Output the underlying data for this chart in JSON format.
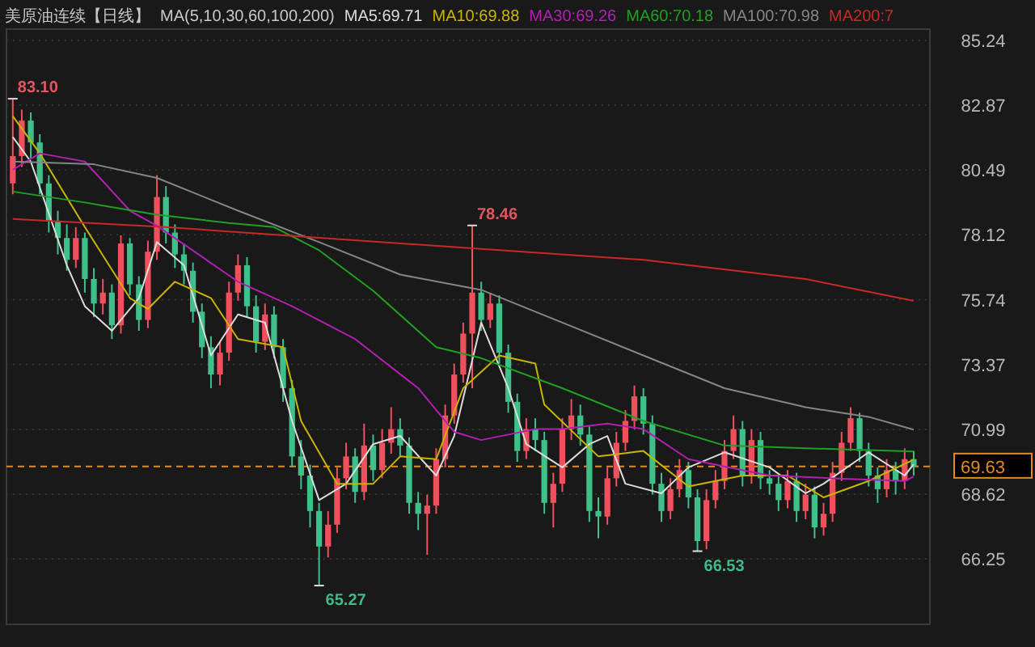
{
  "chart_data": {
    "type": "candlestick",
    "title": "美原油连续【日线】",
    "subtitle": "MA(5,10,30,60,100,200)",
    "categories": [
      null,
      null,
      null,
      null,
      null,
      null,
      null,
      null,
      null,
      null,
      null,
      null,
      null,
      null,
      null,
      null,
      null,
      null,
      null,
      null,
      null,
      null,
      null,
      null,
      null,
      null,
      null,
      null,
      null,
      null,
      null,
      null,
      null,
      null,
      null,
      null,
      null,
      null,
      null,
      null,
      null,
      null,
      null,
      null,
      null,
      null,
      null,
      null,
      null,
      null,
      null,
      null,
      null,
      null,
      null,
      null,
      null,
      null,
      null,
      null,
      null,
      null,
      null,
      null,
      null,
      null,
      null,
      null,
      null,
      null,
      null,
      null,
      null,
      null,
      null,
      null,
      null,
      null,
      null,
      null,
      null,
      null,
      null,
      null,
      null,
      null,
      null,
      null,
      null,
      null,
      null,
      null,
      null,
      null,
      null,
      null,
      null,
      null,
      null,
      null,
      null
    ],
    "ylim": [
      63.85,
      85.65
    ],
    "yticks": [
      66.25,
      68.62,
      70.99,
      73.37,
      75.74,
      78.12,
      80.49,
      82.87,
      85.24
    ],
    "grid": "y",
    "tick_labels": "y",
    "legend": "top",
    "series": [
      {
        "ohlc": [
          [
            80.0,
            83.1,
            79.6,
            81.0
          ],
          [
            81.0,
            82.7,
            80.6,
            82.3
          ],
          [
            82.3,
            82.6,
            80.9,
            81.5
          ],
          [
            81.5,
            81.8,
            79.6,
            80.0
          ],
          [
            80.0,
            80.3,
            78.2,
            78.6
          ],
          [
            78.6,
            79.0,
            77.4,
            78.0
          ],
          [
            78.0,
            78.5,
            76.8,
            77.2
          ],
          [
            77.2,
            78.4,
            76.9,
            78.0
          ],
          [
            78.0,
            78.2,
            76.0,
            76.5
          ],
          [
            76.5,
            76.9,
            75.1,
            75.6
          ],
          [
            75.6,
            76.5,
            75.2,
            76.0
          ],
          [
            76.0,
            76.3,
            74.3,
            74.8
          ],
          [
            74.8,
            78.1,
            74.5,
            77.8
          ],
          [
            77.8,
            78.0,
            75.9,
            76.3
          ],
          [
            76.3,
            76.6,
            74.6,
            75.0
          ],
          [
            75.0,
            77.9,
            74.7,
            77.5
          ],
          [
            77.5,
            80.3,
            77.2,
            79.5
          ],
          [
            79.5,
            79.9,
            77.8,
            78.2
          ],
          [
            78.2,
            78.5,
            76.9,
            77.4
          ],
          [
            77.4,
            77.8,
            76.3,
            76.8
          ],
          [
            76.8,
            77.1,
            74.9,
            75.3
          ],
          [
            75.3,
            75.6,
            73.6,
            74.0
          ],
          [
            74.0,
            74.4,
            72.5,
            73.0
          ],
          [
            73.0,
            74.2,
            72.6,
            73.8
          ],
          [
            73.8,
            76.4,
            73.5,
            76.0
          ],
          [
            76.0,
            77.4,
            75.7,
            77.0
          ],
          [
            77.0,
            77.3,
            75.1,
            75.5
          ],
          [
            75.5,
            75.9,
            73.8,
            74.2
          ],
          [
            74.2,
            75.6,
            73.9,
            75.2
          ],
          [
            75.2,
            75.5,
            73.6,
            74.0
          ],
          [
            74.0,
            74.3,
            72.0,
            72.5
          ],
          [
            72.5,
            72.8,
            69.6,
            70.0
          ],
          [
            70.0,
            70.6,
            68.8,
            69.3
          ],
          [
            69.3,
            69.7,
            67.4,
            68.0
          ],
          [
            68.0,
            68.3,
            65.27,
            66.7
          ],
          [
            66.7,
            68.0,
            66.3,
            67.5
          ],
          [
            67.5,
            69.6,
            67.2,
            69.2
          ],
          [
            69.2,
            70.5,
            68.8,
            70.0
          ],
          [
            70.0,
            70.3,
            68.3,
            68.7
          ],
          [
            68.7,
            71.2,
            68.4,
            70.4
          ],
          [
            70.4,
            70.8,
            69.1,
            69.5
          ],
          [
            69.5,
            71.0,
            69.2,
            70.5
          ],
          [
            70.5,
            71.8,
            70.1,
            71.0
          ],
          [
            71.0,
            71.4,
            70.0,
            70.4
          ],
          [
            70.4,
            70.7,
            67.9,
            68.3
          ],
          [
            68.3,
            68.7,
            67.3,
            67.9
          ],
          [
            67.9,
            68.6,
            66.4,
            68.2
          ],
          [
            68.2,
            70.3,
            67.9,
            69.9
          ],
          [
            69.9,
            71.9,
            69.6,
            71.5
          ],
          [
            71.5,
            73.4,
            71.2,
            73.0
          ],
          [
            73.0,
            74.9,
            72.7,
            74.5
          ],
          [
            74.5,
            78.46,
            72.5,
            76.0
          ],
          [
            76.0,
            76.4,
            74.6,
            75.0
          ],
          [
            75.0,
            76.0,
            74.7,
            75.6
          ],
          [
            75.6,
            75.9,
            73.4,
            73.8
          ],
          [
            73.8,
            74.1,
            71.6,
            72.0
          ],
          [
            72.0,
            72.3,
            69.8,
            70.2
          ],
          [
            70.2,
            71.4,
            69.9,
            71.0
          ],
          [
            71.0,
            71.4,
            70.2,
            70.6
          ],
          [
            70.6,
            70.9,
            67.9,
            68.3
          ],
          [
            68.3,
            69.4,
            67.4,
            69.0
          ],
          [
            69.0,
            71.4,
            68.7,
            71.0
          ],
          [
            71.0,
            72.1,
            70.6,
            71.5
          ],
          [
            71.5,
            71.9,
            70.4,
            70.8
          ],
          [
            70.8,
            71.1,
            67.6,
            68.0
          ],
          [
            68.0,
            68.5,
            67.0,
            67.8
          ],
          [
            67.8,
            69.6,
            67.5,
            69.2
          ],
          [
            69.2,
            70.9,
            68.9,
            70.5
          ],
          [
            70.5,
            71.7,
            70.2,
            71.3
          ],
          [
            71.3,
            72.6,
            71.0,
            72.2
          ],
          [
            72.2,
            72.5,
            70.8,
            71.2
          ],
          [
            71.2,
            71.5,
            68.6,
            69.0
          ],
          [
            69.0,
            69.4,
            67.6,
            68.0
          ],
          [
            68.0,
            69.2,
            67.7,
            68.8
          ],
          [
            68.8,
            69.9,
            68.5,
            69.5
          ],
          [
            69.5,
            69.8,
            68.1,
            68.5
          ],
          [
            68.5,
            68.8,
            66.53,
            66.9
          ],
          [
            66.9,
            68.8,
            66.6,
            68.4
          ],
          [
            68.4,
            69.5,
            68.1,
            69.1
          ],
          [
            69.1,
            70.6,
            68.8,
            70.2
          ],
          [
            70.2,
            71.5,
            69.9,
            71.0
          ],
          [
            71.0,
            71.3,
            68.9,
            69.3
          ],
          [
            69.3,
            71.0,
            69.0,
            70.6
          ],
          [
            70.6,
            70.9,
            68.8,
            69.2
          ],
          [
            69.2,
            69.5,
            68.6,
            69.0
          ],
          [
            69.0,
            69.3,
            68.0,
            68.4
          ],
          [
            68.4,
            69.5,
            68.1,
            69.1
          ],
          [
            69.1,
            69.4,
            67.6,
            68.0
          ],
          [
            68.0,
            69.0,
            67.7,
            68.6
          ],
          [
            68.6,
            68.9,
            67.0,
            67.4
          ],
          [
            67.4,
            68.3,
            67.1,
            67.9
          ],
          [
            67.9,
            69.8,
            67.6,
            69.4
          ],
          [
            69.4,
            70.9,
            69.1,
            70.5
          ],
          [
            70.5,
            71.8,
            70.2,
            71.4
          ],
          [
            71.4,
            71.6,
            69.8,
            70.2
          ],
          [
            70.2,
            70.5,
            68.9,
            69.3
          ],
          [
            69.3,
            69.6,
            68.3,
            68.8
          ],
          [
            68.8,
            69.9,
            68.5,
            69.5
          ],
          [
            69.5,
            69.8,
            68.6,
            69.1
          ],
          [
            69.1,
            70.3,
            68.8,
            69.9
          ],
          [
            69.9,
            70.2,
            69.3,
            69.63
          ]
        ],
        "colors": [
          "#f0505e",
          "#f0505e",
          "#3fbf8a",
          "#3fbf8a",
          "#3fbf8a",
          "#3fbf8a",
          "#3fbf8a",
          "#f0505e",
          "#3fbf8a",
          "#3fbf8a",
          "#f0505e",
          "#3fbf8a",
          "#f0505e",
          "#3fbf8a",
          "#3fbf8a",
          "#f0505e",
          "#f0505e",
          "#3fbf8a",
          "#3fbf8a",
          "#3fbf8a",
          "#3fbf8a",
          "#3fbf8a",
          "#3fbf8a",
          "#f0505e",
          "#f0505e",
          "#f0505e",
          "#3fbf8a",
          "#3fbf8a",
          "#f0505e",
          "#3fbf8a",
          "#3fbf8a",
          "#3fbf8a",
          "#3fbf8a",
          "#3fbf8a",
          "#3fbf8a",
          "#f0505e",
          "#f0505e",
          "#f0505e",
          "#3fbf8a",
          "#f0505e",
          "#3fbf8a",
          "#f0505e",
          "#f0505e",
          "#3fbf8a",
          "#3fbf8a",
          "#3fbf8a",
          "#f0505e",
          "#f0505e",
          "#f0505e",
          "#f0505e",
          "#f0505e",
          "#f0505e",
          "#3fbf8a",
          "#f0505e",
          "#3fbf8a",
          "#3fbf8a",
          "#3fbf8a",
          "#f0505e",
          "#3fbf8a",
          "#3fbf8a",
          "#f0505e",
          "#f0505e",
          "#f0505e",
          "#3fbf8a",
          "#3fbf8a",
          "#3fbf8a",
          "#f0505e",
          "#f0505e",
          "#f0505e",
          "#f0505e",
          "#3fbf8a",
          "#3fbf8a",
          "#3fbf8a",
          "#f0505e",
          "#f0505e",
          "#3fbf8a",
          "#3fbf8a",
          "#f0505e",
          "#f0505e",
          "#f0505e",
          "#f0505e",
          "#3fbf8a",
          "#f0505e",
          "#3fbf8a",
          "#3fbf8a",
          "#3fbf8a",
          "#f0505e",
          "#3fbf8a",
          "#f0505e",
          "#3fbf8a",
          "#f0505e",
          "#f0505e",
          "#f0505e",
          "#f0505e",
          "#3fbf8a",
          "#3fbf8a",
          "#3fbf8a",
          "#f0505e",
          "#3fbf8a",
          "#f0505e",
          "#3fbf8a"
        ]
      },
      {
        "type": "line",
        "name": "MA5:69.71",
        "color": "#dcdcdc",
        "values": [
          81.7,
          null,
          80.8,
          null,
          null,
          null,
          77.0,
          null,
          75.5,
          null,
          null,
          74.6,
          null,
          null,
          75.8,
          null,
          77.85,
          null,
          null,
          77.0,
          null,
          null,
          73.7,
          null,
          null,
          75.2,
          null,
          null,
          74.9,
          null,
          null,
          71.3,
          null,
          null,
          68.4,
          null,
          null,
          69.0,
          null,
          null,
          70.45,
          null,
          null,
          70.75,
          null,
          null,
          null,
          69.3,
          null,
          70.75,
          null,
          null,
          74.9,
          null,
          null,
          72.5,
          null,
          70.45,
          null,
          null,
          null,
          69.6,
          null,
          null,
          70.45,
          null,
          70.75,
          null,
          69.0,
          null,
          null,
          null,
          68.65,
          null,
          null,
          69.6,
          null,
          null,
          null,
          70.15,
          null,
          null,
          null,
          null,
          69.6,
          null,
          null,
          null,
          68.65,
          null,
          69.0,
          null,
          null,
          null,
          null,
          70.15,
          null,
          null,
          null,
          69.3,
          69.71
        ]
      },
      {
        "type": "line",
        "name": "MA10:69.88",
        "color": "#c8b400",
        "values": [
          82.46,
          null,
          null,
          81.1,
          null,
          null,
          null,
          null,
          78.4,
          null,
          null,
          null,
          null,
          75.8,
          null,
          75.4,
          null,
          null,
          76.4,
          null,
          null,
          null,
          75.8,
          null,
          null,
          74.3,
          null,
          null,
          null,
          null,
          74.0,
          null,
          71.3,
          null,
          null,
          null,
          69.0,
          null,
          null,
          null,
          69.0,
          null,
          null,
          70.0,
          null,
          null,
          null,
          69.9,
          null,
          null,
          72.5,
          null,
          null,
          null,
          73.7,
          null,
          null,
          null,
          73.4,
          71.9,
          null,
          null,
          null,
          null,
          null,
          70.0,
          null,
          null,
          null,
          null,
          70.2,
          null,
          null,
          null,
          null,
          68.9,
          null,
          null,
          null,
          null,
          null,
          69.3,
          null,
          null,
          null,
          null,
          69.3,
          null,
          null,
          null,
          68.5,
          null,
          null,
          null,
          null,
          69.1,
          null,
          null,
          null,
          null,
          69.88
        ]
      },
      {
        "type": "line",
        "name": "MA30:69.26",
        "color": "#b020b0",
        "values": [
          80.5,
          null,
          null,
          81.1,
          null,
          null,
          null,
          null,
          80.8,
          null,
          null,
          null,
          null,
          79.0,
          null,
          null,
          78.45,
          null,
          null,
          null,
          null,
          null,
          null,
          null,
          null,
          76.4,
          null,
          null,
          null,
          null,
          null,
          75.5,
          null,
          null,
          null,
          null,
          null,
          null,
          74.3,
          null,
          null,
          null,
          null,
          null,
          null,
          72.5,
          null,
          null,
          null,
          70.9,
          null,
          null,
          70.6,
          null,
          null,
          null,
          null,
          null,
          71.0,
          null,
          null,
          71.0,
          null,
          null,
          null,
          null,
          71.2,
          null,
          null,
          null,
          71.0,
          null,
          null,
          null,
          null,
          69.9,
          null,
          null,
          null,
          null,
          null,
          null,
          null,
          null,
          69.3,
          null,
          null,
          null,
          null,
          null,
          null,
          69.2,
          null,
          null,
          null,
          null,
          null,
          null,
          null,
          69.1,
          69.26
        ]
      },
      {
        "type": "line",
        "name": "MA60:70.18",
        "color": "#20a020",
        "values": [
          79.7,
          null,
          null,
          null,
          null,
          null,
          null,
          null,
          79.3,
          null,
          null,
          null,
          null,
          null,
          null,
          null,
          78.85,
          null,
          null,
          null,
          null,
          null,
          null,
          null,
          78.55,
          null,
          null,
          null,
          null,
          78.4,
          null,
          null,
          null,
          null,
          77.55,
          null,
          null,
          null,
          null,
          null,
          76.07,
          null,
          null,
          null,
          null,
          null,
          null,
          74.0,
          null,
          null,
          null,
          null,
          73.6,
          null,
          null,
          null,
          null,
          null,
          null,
          null,
          null,
          72.5,
          null,
          null,
          null,
          null,
          null,
          null,
          null,
          null,
          71.3,
          null,
          null,
          null,
          null,
          null,
          null,
          null,
          null,
          70.4,
          null,
          null,
          null,
          null,
          null,
          null,
          null,
          null,
          70.3,
          null,
          null,
          null,
          null,
          null,
          null,
          null,
          null,
          null,
          null,
          null,
          70.18
        ]
      },
      {
        "type": "line",
        "name": "MA100:70.98",
        "color": "#858585",
        "values": [
          80.8,
          null,
          null,
          null,
          null,
          null,
          null,
          null,
          null,
          80.7,
          null,
          null,
          null,
          null,
          null,
          null,
          80.2,
          null,
          null,
          null,
          null,
          null,
          null,
          null,
          null,
          79.0,
          null,
          null,
          null,
          null,
          null,
          null,
          null,
          null,
          77.85,
          null,
          null,
          null,
          null,
          null,
          null,
          null,
          null,
          76.66,
          null,
          null,
          null,
          null,
          null,
          null,
          null,
          null,
          76.1,
          null,
          null,
          null,
          null,
          null,
          null,
          null,
          null,
          74.9,
          null,
          null,
          null,
          null,
          null,
          null,
          null,
          null,
          73.7,
          null,
          null,
          null,
          null,
          null,
          null,
          null,
          null,
          72.5,
          null,
          null,
          null,
          null,
          null,
          null,
          null,
          null,
          71.8,
          null,
          null,
          null,
          null,
          null,
          null,
          71.45,
          null,
          null,
          null,
          null,
          70.98
        ]
      },
      {
        "type": "line",
        "name": "MA200:7",
        "color": "#c82828",
        "values": [
          78.7,
          null,
          null,
          null,
          null,
          null,
          null,
          null,
          null,
          null,
          null,
          null,
          null,
          null,
          null,
          null,
          null,
          78.4,
          null,
          null,
          null,
          null,
          null,
          null,
          null,
          null,
          null,
          null,
          null,
          null,
          null,
          null,
          null,
          null,
          null,
          null,
          null,
          null,
          null,
          null,
          null,
          null,
          null,
          null,
          null,
          null,
          null,
          null,
          null,
          null,
          null,
          null,
          77.6,
          null,
          null,
          null,
          null,
          null,
          null,
          null,
          null,
          null,
          null,
          null,
          null,
          null,
          null,
          null,
          null,
          null,
          77.2,
          null,
          null,
          null,
          null,
          null,
          null,
          null,
          null,
          null,
          null,
          null,
          null,
          null,
          null,
          null,
          null,
          null,
          76.5,
          null,
          null,
          null,
          null,
          null,
          null,
          null,
          null,
          null,
          null,
          null,
          75.7
        ]
      }
    ],
    "annotations": [
      "83.10",
      "78.46",
      "65.27",
      "66.53"
    ],
    "ref_lines": [
      {
        "axis": "y",
        "value": 69.63,
        "label": "69.63",
        "color": "#e08a20",
        "line_style": "dashed"
      }
    ]
  }
}
